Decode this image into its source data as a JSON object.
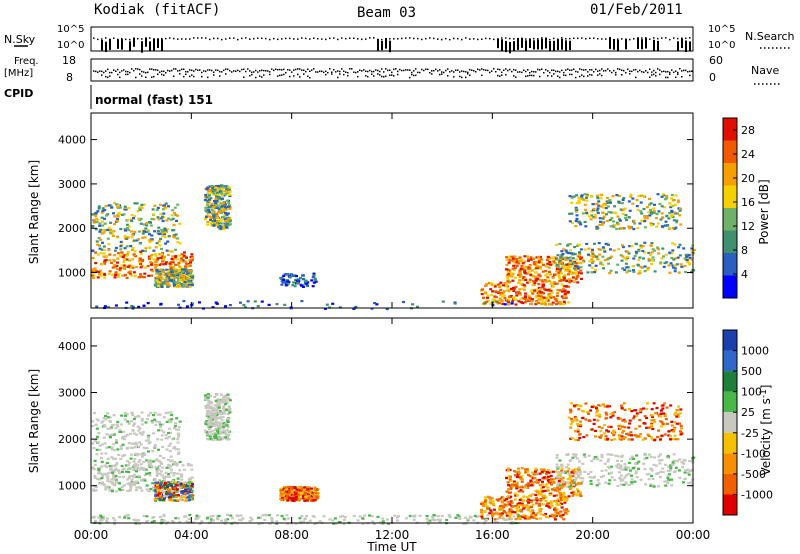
{
  "header": {
    "station": "Kodiak (fitACF)",
    "beam": "Beam 03",
    "date": "01/Feb/2011"
  },
  "strip_panels": {
    "nsky_label": "N.Sky",
    "nsearch_label": "N.Search",
    "noise_ticks_left": [
      "10^5",
      "10^0"
    ],
    "noise_ticks_right": [
      "10^5",
      "10^0"
    ],
    "freq_label_1": "Freq.",
    "freq_label_2": "[MHz]",
    "freq_ticks": [
      "18",
      "8"
    ],
    "nave_label": "Nave",
    "nave_ticks": [
      "60",
      "0"
    ],
    "cpid_label": "CPID",
    "cpid_value": "normal (fast) 151"
  },
  "colors": {
    "power_scale": [
      "#0000ff",
      "#2a5fc0",
      "#3f8f70",
      "#6fb06a",
      "#f5d000",
      "#f5a000",
      "#f05a00",
      "#e01000"
    ],
    "velocity_scale": [
      "#1c3fae",
      "#2f68c8",
      "#1d7f3a",
      "#48b848",
      "#c8c8c0",
      "#f5c000",
      "#f59000",
      "#f06000",
      "#e00000"
    ]
  },
  "chart_data": [
    {
      "type": "heatmap",
      "parameter": "power",
      "x_ticks": [
        "00:00",
        "04:00",
        "08:00",
        "12:00",
        "16:00",
        "20:00",
        "00:00"
      ],
      "xlim": [
        0,
        24
      ],
      "ylabel": "Slant Range [km]",
      "y_ticks": [
        1000,
        2000,
        3000,
        4000
      ],
      "ylim": [
        200,
        4600
      ],
      "colorbar_label": "Power [dB]",
      "colorbar_ticks": [
        4,
        8,
        12,
        16,
        20,
        24,
        28
      ],
      "colorbar_range": [
        0,
        30
      ],
      "regions": [
        {
          "t": [
            0.0,
            4.0
          ],
          "r": [
            900,
            1500
          ],
          "level": "high"
        },
        {
          "t": [
            0.0,
            3.5
          ],
          "r": [
            1500,
            2600
          ],
          "level": "medium"
        },
        {
          "t": [
            2.5,
            4.0
          ],
          "r": [
            700,
            1100
          ],
          "level": "medium"
        },
        {
          "t": [
            4.5,
            5.5
          ],
          "r": [
            2000,
            3000
          ],
          "level": "medium"
        },
        {
          "t": [
            7.5,
            9.0
          ],
          "r": [
            700,
            1000
          ],
          "level": "low"
        },
        {
          "t": [
            15.5,
            19.0
          ],
          "r": [
            300,
            800
          ],
          "level": "high"
        },
        {
          "t": [
            16.5,
            19.5
          ],
          "r": [
            800,
            1400
          ],
          "level": "high"
        },
        {
          "t": [
            18.5,
            24.0
          ],
          "r": [
            1000,
            1700
          ],
          "level": "medium"
        },
        {
          "t": [
            19.0,
            23.5
          ],
          "r": [
            2000,
            2800
          ],
          "level": "medium"
        },
        {
          "t": [
            0.0,
            17.0
          ],
          "r": [
            200,
            400
          ],
          "level": "low"
        }
      ]
    },
    {
      "type": "heatmap",
      "parameter": "velocity",
      "x_ticks": [
        "00:00",
        "04:00",
        "08:00",
        "12:00",
        "16:00",
        "20:00",
        "00:00"
      ],
      "xlim": [
        0,
        24
      ],
      "xlabel": "Time UT",
      "ylabel": "Slant Range [km]",
      "y_ticks": [
        1000,
        2000,
        3000,
        4000
      ],
      "ylim": [
        200,
        4600
      ],
      "colorbar_label": "Velocity [m s^-1]",
      "colorbar_ticks": [
        1000,
        500,
        100,
        25,
        -25,
        -100,
        -500,
        -1000
      ],
      "regions": [
        {
          "t": [
            0.0,
            4.0
          ],
          "r": [
            900,
            1500
          ],
          "level": "ground"
        },
        {
          "t": [
            0.0,
            3.5
          ],
          "r": [
            1500,
            2600
          ],
          "level": "ground"
        },
        {
          "t": [
            2.5,
            4.0
          ],
          "r": [
            700,
            1100
          ],
          "level": "mixed"
        },
        {
          "t": [
            4.5,
            5.5
          ],
          "r": [
            2000,
            3000
          ],
          "level": "ground"
        },
        {
          "t": [
            7.5,
            9.0
          ],
          "r": [
            700,
            1000
          ],
          "level": "away"
        },
        {
          "t": [
            15.5,
            19.0
          ],
          "r": [
            300,
            800
          ],
          "level": "away"
        },
        {
          "t": [
            16.5,
            19.5
          ],
          "r": [
            800,
            1400
          ],
          "level": "away"
        },
        {
          "t": [
            18.5,
            24.0
          ],
          "r": [
            1000,
            1700
          ],
          "level": "ground"
        },
        {
          "t": [
            19.0,
            23.5
          ],
          "r": [
            2000,
            2800
          ],
          "level": "away"
        },
        {
          "t": [
            0.0,
            17.0
          ],
          "r": [
            200,
            400
          ],
          "level": "ground"
        }
      ]
    }
  ]
}
